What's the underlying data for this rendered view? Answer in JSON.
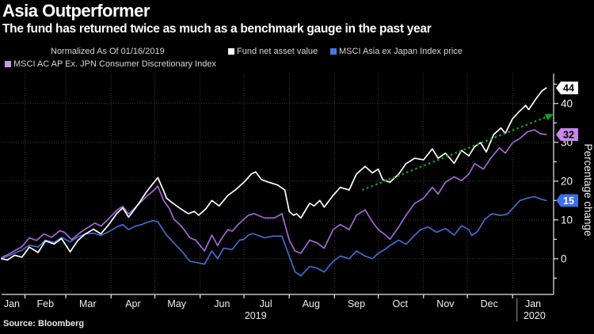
{
  "header": {
    "title": "Asia Outperformer",
    "subtitle": "The fund has returned twice as much as a benchmark gauge in the past year"
  },
  "legend": {
    "normalized_note": "Normalized As Of 01/16/2019",
    "items": [
      {
        "label": "Fund net asset value",
        "color": "#ffffff"
      },
      {
        "label": "MSCI Asia ex Japan Index price",
        "color": "#4479e4"
      },
      {
        "label": "MSCI AC AP Ex. JPN Consumer Discretionary Index",
        "color": "#c79ae8"
      }
    ]
  },
  "source": "Source: Bloomberg",
  "colors": {
    "background": "#000000",
    "grid": "#3d3d3d",
    "axis": "#e8e8e8",
    "trend_arrow": "#10a11d"
  },
  "y_axis": {
    "title": "Percentage change",
    "major_ticks": [
      0,
      10,
      20,
      30,
      40
    ],
    "minor_ticks": [
      -5,
      5,
      15,
      25,
      35,
      45
    ]
  },
  "x_axis": {
    "month_boundary_days": [
      16,
      44,
      75,
      105,
      136,
      166,
      197,
      228,
      258,
      289,
      319,
      350
    ],
    "labels": [
      {
        "text": "Jan",
        "day": 7
      },
      {
        "text": "Feb",
        "day": 30
      },
      {
        "text": "Mar",
        "day": 59
      },
      {
        "text": "Apr",
        "day": 90
      },
      {
        "text": "May",
        "day": 120
      },
      {
        "text": "Jun",
        "day": 151
      },
      {
        "text": "Jul",
        "day": 181
      },
      {
        "text": "Aug",
        "day": 212
      },
      {
        "text": "Sep",
        "day": 243
      },
      {
        "text": "Oct",
        "day": 273
      },
      {
        "text": "Nov",
        "day": 304
      },
      {
        "text": "Dec",
        "day": 334
      },
      {
        "text": "Jan",
        "day": 364
      }
    ],
    "year_labels": [
      {
        "text": "2019",
        "day": 174
      },
      {
        "text": "2020",
        "day": 365
      }
    ],
    "year_divider_day": 353
  },
  "chart_data": {
    "type": "line",
    "x_unit": "days since 2019-01-16",
    "xlim": [
      0,
      377
    ],
    "ylim": [
      -9.2,
      47.7
    ],
    "grid": "dotted horizontal at major ticks, vertical at month boundaries",
    "legend_position": "top",
    "series": [
      {
        "name": "MSCI Asia ex Japan Index price",
        "color": "#3f6cd2",
        "end_label": {
          "text": "15",
          "bg": "#3d6fe8",
          "fg": "#ffffff"
        },
        "points": [
          [
            0,
            0
          ],
          [
            5,
            0.8
          ],
          [
            11,
            1.8
          ],
          [
            14,
            2.2
          ],
          [
            19,
            3.5
          ],
          [
            25,
            3.0
          ],
          [
            30,
            4.8
          ],
          [
            36,
            4.2
          ],
          [
            41,
            5.5
          ],
          [
            47,
            4.3
          ],
          [
            52,
            5.6
          ],
          [
            58,
            6.4
          ],
          [
            63,
            6.6
          ],
          [
            68,
            6.0
          ],
          [
            73,
            6.9
          ],
          [
            79,
            8.2
          ],
          [
            83,
            8.8
          ],
          [
            87,
            7.5
          ],
          [
            91,
            8.3
          ],
          [
            96,
            8.8
          ],
          [
            99,
            9.3
          ],
          [
            104,
            9.8
          ],
          [
            107,
            9.5
          ],
          [
            113,
            6.1
          ],
          [
            118,
            4.1
          ],
          [
            124,
            1.7
          ],
          [
            129,
            -0.7
          ],
          [
            134,
            -1.0
          ],
          [
            139,
            -1.4
          ],
          [
            144,
            2.0
          ],
          [
            148,
            0.0
          ],
          [
            152,
            2.7
          ],
          [
            158,
            2.4
          ],
          [
            163,
            4.8
          ],
          [
            166,
            5.0
          ],
          [
            169,
            6.1
          ],
          [
            172,
            6.5
          ],
          [
            180,
            5.4
          ],
          [
            186,
            5.8
          ],
          [
            192,
            5.8
          ],
          [
            197,
            0.7
          ],
          [
            201,
            -3.4
          ],
          [
            205,
            -4.4
          ],
          [
            211,
            -2.0
          ],
          [
            216,
            -2.4
          ],
          [
            221,
            -3.4
          ],
          [
            227,
            -0.7
          ],
          [
            232,
            0.7
          ],
          [
            238,
            0.0
          ],
          [
            243,
            2.0
          ],
          [
            249,
            0.7
          ],
          [
            252,
            0.3
          ],
          [
            254,
            0.0
          ],
          [
            258,
            1.4
          ],
          [
            263,
            2.5
          ],
          [
            266,
            3.4
          ],
          [
            272,
            4.8
          ],
          [
            277,
            3.7
          ],
          [
            283,
            6.1
          ],
          [
            287,
            7.5
          ],
          [
            292,
            8.2
          ],
          [
            298,
            6.8
          ],
          [
            304,
            7.8
          ],
          [
            310,
            6.1
          ],
          [
            315,
            8.5
          ],
          [
            320,
            7.5
          ],
          [
            322,
            6.0
          ],
          [
            326,
            7.0
          ],
          [
            331,
            10.2
          ],
          [
            336,
            11.6
          ],
          [
            341,
            11.2
          ],
          [
            346,
            11.4
          ],
          [
            350,
            12.9
          ],
          [
            355,
            15.0
          ],
          [
            360,
            15.6
          ],
          [
            365,
            16.0
          ],
          [
            369,
            15.4
          ],
          [
            373,
            15.0
          ]
        ]
      },
      {
        "name": "MSCI AC AP Ex. JPN Consumer Discretionary Index",
        "color": "#a565d8",
        "end_label": {
          "text": "32",
          "bg": "#ca86ec",
          "fg": "#000000"
        },
        "points": [
          [
            0,
            0.3
          ],
          [
            5,
            1.2
          ],
          [
            11,
            2.5
          ],
          [
            14,
            3.1
          ],
          [
            19,
            5.4
          ],
          [
            24,
            4.7
          ],
          [
            29,
            6.4
          ],
          [
            34,
            5.5
          ],
          [
            40,
            7.2
          ],
          [
            43,
            6.8
          ],
          [
            48,
            4.9
          ],
          [
            53,
            6.5
          ],
          [
            58,
            7.8
          ],
          [
            64,
            9.2
          ],
          [
            68,
            8.4
          ],
          [
            73,
            10.2
          ],
          [
            79,
            12.5
          ],
          [
            83,
            13.5
          ],
          [
            87,
            11.5
          ],
          [
            91,
            13.0
          ],
          [
            96,
            14.8
          ],
          [
            99,
            16.0
          ],
          [
            104,
            17.5
          ],
          [
            107,
            18.7
          ],
          [
            111,
            15.0
          ],
          [
            115,
            12.9
          ],
          [
            118,
            10.2
          ],
          [
            122,
            8.8
          ],
          [
            125,
            7.5
          ],
          [
            129,
            5.4
          ],
          [
            133,
            4.8
          ],
          [
            136,
            3.4
          ],
          [
            139,
            2.0
          ],
          [
            144,
            6.1
          ],
          [
            148,
            3.4
          ],
          [
            151,
            5.4
          ],
          [
            155,
            7.5
          ],
          [
            158,
            7.1
          ],
          [
            162,
            8.8
          ],
          [
            166,
            10.2
          ],
          [
            169,
            11.2
          ],
          [
            173,
            11.6
          ],
          [
            180,
            10.5
          ],
          [
            187,
            10.5
          ],
          [
            192,
            11.6
          ],
          [
            197,
            4.8
          ],
          [
            201,
            2.0
          ],
          [
            205,
            1.4
          ],
          [
            211,
            4.8
          ],
          [
            216,
            4.1
          ],
          [
            221,
            2.7
          ],
          [
            227,
            7.5
          ],
          [
            232,
            8.8
          ],
          [
            238,
            7.5
          ],
          [
            243,
            11.2
          ],
          [
            249,
            12.6
          ],
          [
            254,
            9.5
          ],
          [
            258,
            7.5
          ],
          [
            263,
            6.1
          ],
          [
            266,
            5.0
          ],
          [
            272,
            8.2
          ],
          [
            277,
            11.2
          ],
          [
            283,
            14.3
          ],
          [
            289,
            15.6
          ],
          [
            295,
            18.4
          ],
          [
            299,
            16.7
          ],
          [
            304,
            19.7
          ],
          [
            310,
            21.1
          ],
          [
            315,
            20.1
          ],
          [
            320,
            21.8
          ],
          [
            324,
            24.5
          ],
          [
            330,
            23.1
          ],
          [
            335,
            25.9
          ],
          [
            341,
            28.6
          ],
          [
            345,
            27.2
          ],
          [
            350,
            29.9
          ],
          [
            355,
            31.0
          ],
          [
            360,
            32.7
          ],
          [
            365,
            33.2
          ],
          [
            369,
            32.2
          ],
          [
            373,
            32.0
          ]
        ]
      },
      {
        "name": "Fund net asset value",
        "color": "#ffffff",
        "end_label": {
          "text": "44",
          "bg": "#ffffff",
          "fg": "#000000"
        },
        "points": [
          [
            0,
            0
          ],
          [
            4,
            -0.3
          ],
          [
            9,
            0.9
          ],
          [
            14,
            0.4
          ],
          [
            19,
            3.0
          ],
          [
            25,
            1.6
          ],
          [
            30,
            4.6
          ],
          [
            36,
            3.8
          ],
          [
            41,
            5.2
          ],
          [
            47,
            1.8
          ],
          [
            52,
            4.6
          ],
          [
            57,
            6.3
          ],
          [
            63,
            7.6
          ],
          [
            68,
            6.4
          ],
          [
            73,
            8.6
          ],
          [
            79,
            11.7
          ],
          [
            83,
            13.1
          ],
          [
            87,
            10.7
          ],
          [
            91,
            12.7
          ],
          [
            95,
            14.8
          ],
          [
            99,
            17.1
          ],
          [
            104,
            19.5
          ],
          [
            107,
            20.9
          ],
          [
            111,
            17.5
          ],
          [
            113,
            15.6
          ],
          [
            117,
            14.4
          ],
          [
            121,
            13.3
          ],
          [
            125,
            12.3
          ],
          [
            128,
            11.6
          ],
          [
            132,
            12.2
          ],
          [
            135,
            11.2
          ],
          [
            140,
            12.9
          ],
          [
            144,
            15.0
          ],
          [
            149,
            13.6
          ],
          [
            155,
            16.3
          ],
          [
            160,
            17.7
          ],
          [
            166,
            19.7
          ],
          [
            171,
            21.8
          ],
          [
            174,
            22.4
          ],
          [
            178,
            20.4
          ],
          [
            183,
            19.7
          ],
          [
            189,
            19.0
          ],
          [
            194,
            17.7
          ],
          [
            197,
            12.2
          ],
          [
            200,
            11.2
          ],
          [
            202,
            11.6
          ],
          [
            205,
            10.5
          ],
          [
            211,
            14.3
          ],
          [
            214,
            13.6
          ],
          [
            218,
            15.0
          ],
          [
            221,
            13.3
          ],
          [
            227,
            16.3
          ],
          [
            232,
            18.4
          ],
          [
            238,
            17.7
          ],
          [
            243,
            21.8
          ],
          [
            249,
            23.8
          ],
          [
            254,
            22.1
          ],
          [
            258,
            23.1
          ],
          [
            261,
            20.4
          ],
          [
            266,
            19.7
          ],
          [
            272,
            21.8
          ],
          [
            277,
            24.5
          ],
          [
            283,
            25.9
          ],
          [
            289,
            25.5
          ],
          [
            295,
            28.3
          ],
          [
            299,
            25.9
          ],
          [
            304,
            27.2
          ],
          [
            310,
            24.6
          ],
          [
            315,
            27.9
          ],
          [
            320,
            26.5
          ],
          [
            324,
            28.9
          ],
          [
            328,
            29.9
          ],
          [
            332,
            27.5
          ],
          [
            337,
            32.0
          ],
          [
            342,
            33.7
          ],
          [
            345,
            32.3
          ],
          [
            350,
            36.1
          ],
          [
            355,
            38.1
          ],
          [
            359,
            39.5
          ],
          [
            361,
            38.4
          ],
          [
            366,
            41.2
          ],
          [
            370,
            43.2
          ],
          [
            373,
            44.0
          ]
        ]
      }
    ],
    "trend_annotation": {
      "type": "dotted-arrow",
      "color": "#10a11d",
      "from": [
        247,
        17.7
      ],
      "to": [
        373,
        36.5
      ]
    }
  }
}
